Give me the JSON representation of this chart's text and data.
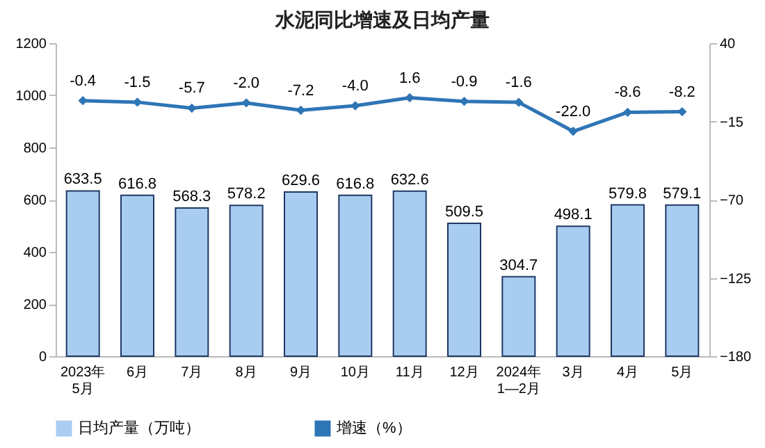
{
  "chart_data": {
    "type": "bar",
    "title": "水泥同比增速及日均产量",
    "categories": [
      "2023年\n5月",
      "6月",
      "7月",
      "8月",
      "9月",
      "10月",
      "11月",
      "12月",
      "2024年\n1—2月",
      "3月",
      "4月",
      "5月"
    ],
    "series": [
      {
        "name": "日均产量（万吨）",
        "color": "#a9cdf0",
        "values": [
          633.5,
          616.8,
          568.3,
          578.2,
          629.6,
          616.8,
          632.6,
          509.5,
          304.7,
          498.1,
          579.8,
          579.1
        ],
        "value_labels": [
          "633.5",
          "616.8",
          "568.3",
          "578.2",
          "629.6",
          "616.8",
          "632.6",
          "509.5",
          "304.7",
          "498.1",
          "579.8",
          "579.1"
        ]
      },
      {
        "name": "增速（%）",
        "type": "line",
        "axis": "y2",
        "color": "#2e75b6",
        "values": [
          -0.4,
          -1.5,
          -5.7,
          -2.0,
          -7.2,
          -4.0,
          1.6,
          -0.9,
          -1.6,
          -22.0,
          -8.6,
          -8.2
        ],
        "value_labels": [
          "-0.4",
          "-1.5",
          "-5.7",
          "-2.0",
          "-7.2",
          "-4.0",
          "1.6",
          "-0.9",
          "-1.6",
          "-22.0",
          "-8.6",
          "-8.2"
        ]
      }
    ],
    "ylim": [
      0,
      1200
    ],
    "yticks": [
      0,
      200,
      400,
      600,
      800,
      1000,
      1200
    ],
    "y2lim": [
      -180,
      40
    ],
    "y2ticks": [
      -180,
      -125,
      -70,
      -15,
      40
    ],
    "legend": "bottom",
    "marker": "diamond",
    "line_style": "solid"
  }
}
